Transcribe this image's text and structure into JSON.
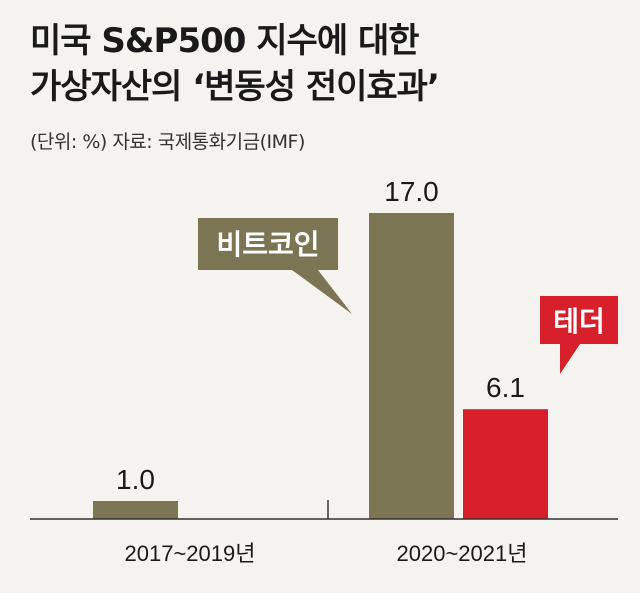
{
  "title_line1": "미국 S&P500 지수에 대한",
  "title_line2": "가상자산의 ‘변동성 전이효과’",
  "subtitle": "(단위: %) 자료: 국제통화기금(IMF)",
  "colors": {
    "bitcoin": "#7b7553",
    "tether": "#d7202c",
    "axis": "#333333",
    "background": "#f4f3ef"
  },
  "chart_data": {
    "type": "bar",
    "categories": [
      "2017~2019년",
      "2020~2021년"
    ],
    "series": [
      {
        "name": "비트코인",
        "values": [
          1.0,
          17.0
        ],
        "color": "#7b7553"
      },
      {
        "name": "테더",
        "values": [
          null,
          6.1
        ],
        "color": "#d7202c"
      }
    ],
    "data_labels": [
      {
        "series": "비트코인",
        "category": "2017~2019년",
        "text": "1.0"
      },
      {
        "series": "비트코인",
        "category": "2020~2021년",
        "text": "17.0"
      },
      {
        "series": "테더",
        "category": "2020~2021년",
        "text": "6.1"
      }
    ],
    "ylim": [
      0,
      18
    ],
    "grid": false,
    "legend": "callouts"
  }
}
